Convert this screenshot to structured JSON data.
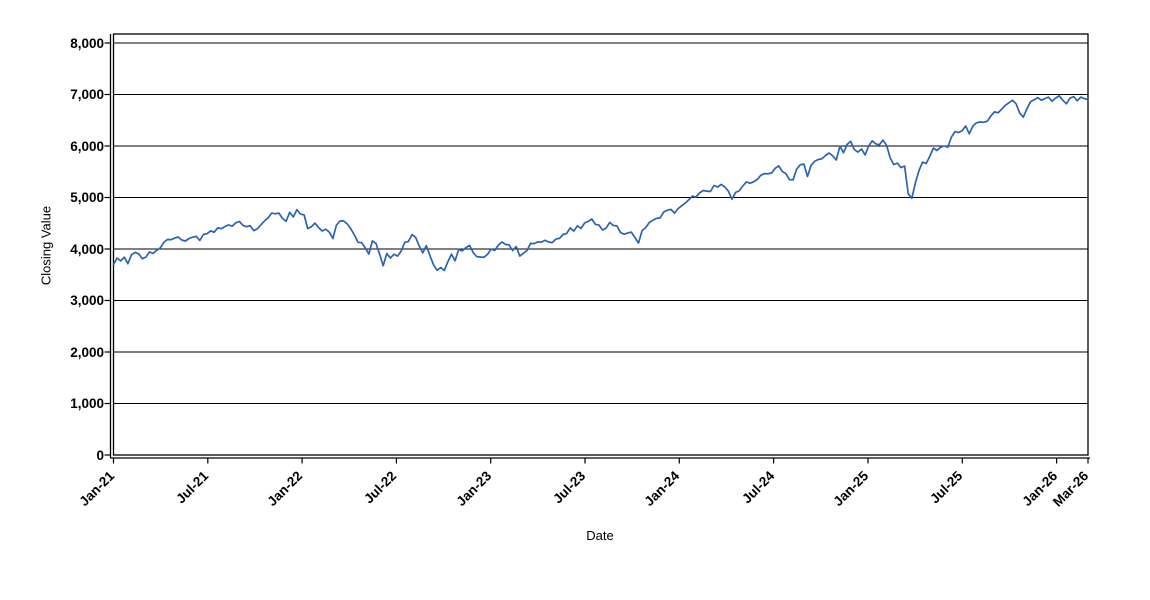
{
  "chart_data": {
    "type": "line",
    "title": "",
    "xlabel": "Date",
    "ylabel": "Closing Value",
    "legend": "none",
    "grid": "horizontal",
    "line_color": "#2c63ae",
    "axis_color": "#000000",
    "background_color": "#ffffff",
    "ylim": [
      0,
      8175
    ],
    "y_ticks": [
      0,
      1000,
      2000,
      3000,
      4000,
      5000,
      6000,
      7000,
      8000
    ],
    "y_tick_labels": [
      "0",
      "1,000",
      "2,000",
      "3,000",
      "4,000",
      "5,000",
      "6,000",
      "7,000",
      "8,000"
    ],
    "x_tick_labels": [
      "Jan-21",
      "Jul-21",
      "Jan-22",
      "Jul-22",
      "Jan-23",
      "Jul-23",
      "Jan-24",
      "Jul-24",
      "Jan-25",
      "Jul-25",
      "Jan-26",
      "Mar-26"
    ],
    "x_tick_months": [
      0,
      6,
      12,
      18,
      24,
      30,
      36,
      42,
      48,
      54,
      60,
      62
    ],
    "x_domain_months": [
      0,
      62
    ],
    "series": [
      {
        "name": "Closing Value",
        "sampling": "weekly",
        "values": [
          3700,
          3825,
          3768,
          3841,
          3714,
          3887,
          3935,
          3907,
          3811,
          3842,
          3943,
          3913,
          3975,
          4020,
          4129,
          4185,
          4180,
          4211,
          4233,
          4174,
          4156,
          4204,
          4230,
          4247,
          4166,
          4281,
          4297,
          4352,
          4327,
          4412,
          4395,
          4437,
          4468,
          4442,
          4509,
          4535,
          4459,
          4433,
          4455,
          4357,
          4391,
          4471,
          4545,
          4605,
          4698,
          4683,
          4698,
          4595,
          4538,
          4712,
          4621,
          4766,
          4677,
          4663,
          4398,
          4432,
          4501,
          4419,
          4349,
          4385,
          4329,
          4204,
          4463,
          4543,
          4546,
          4488,
          4393,
          4272,
          4131,
          4123,
          4024,
          3901,
          4158,
          4109,
          3901,
          3675,
          3912,
          3825,
          3899,
          3863,
          3962,
          4130,
          4145,
          4280,
          4228,
          4058,
          3924,
          4067,
          3873,
          3693,
          3586,
          3640,
          3583,
          3753,
          3901,
          3771,
          3993,
          3965,
          4026,
          4072,
          3934,
          3852,
          3845,
          3839,
          3895,
          3999,
          3973,
          4071,
          4136,
          4090,
          4079,
          3970,
          4046,
          3862,
          3917,
          3971,
          4109,
          4105,
          4138,
          4134,
          4169,
          4136,
          4124,
          4192,
          4205,
          4282,
          4299,
          4410,
          4348,
          4450,
          4399,
          4505,
          4536,
          4582,
          4478,
          4464,
          4370,
          4406,
          4516,
          4457,
          4450,
          4320,
          4288,
          4309,
          4328,
          4224,
          4117,
          4358,
          4415,
          4514,
          4559,
          4595,
          4604,
          4719,
          4754,
          4770,
          4697,
          4784,
          4840,
          4891,
          4959,
          5027,
          5006,
          5089,
          5137,
          5124,
          5117,
          5234,
          5204,
          5254,
          5204,
          5123,
          4967,
          5100,
          5128,
          5223,
          5303,
          5278,
          5305,
          5347,
          5432,
          5465,
          5460,
          5475,
          5567,
          5615,
          5505,
          5463,
          5347,
          5344,
          5554,
          5635,
          5648,
          5408,
          5626,
          5703,
          5738,
          5751,
          5815,
          5865,
          5808,
          5729,
          5996,
          5871,
          6032,
          6090,
          5931,
          5882,
          5942,
          5827,
          5997,
          6101,
          6041,
          6026,
          6115,
          6013,
          5770,
          5639,
          5668,
          5581,
          5612,
          5074,
          4985,
          5283,
          5525,
          5687,
          5660,
          5803,
          5959,
          5912,
          5977,
          6000,
          5977,
          6173,
          6280,
          6260,
          6297,
          6389,
          6238,
          6389,
          6450,
          6467,
          6460,
          6482,
          6584,
          6664,
          6644,
          6716,
          6790,
          6840,
          6890,
          6820,
          6640,
          6560,
          6720,
          6860,
          6900,
          6940,
          6890,
          6920,
          6950,
          6870,
          6930,
          6975,
          6890,
          6820,
          6930,
          6960,
          6880,
          6950,
          6920,
          6900
        ]
      }
    ]
  }
}
